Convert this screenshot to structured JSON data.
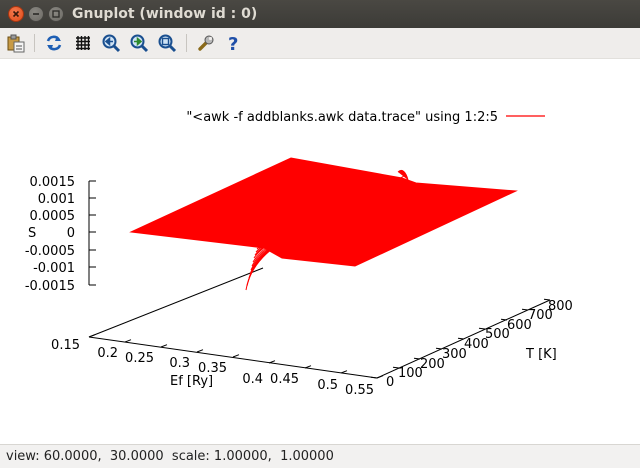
{
  "window": {
    "title": "Gnuplot (window id : 0)"
  },
  "toolbar": {
    "icons": [
      "copy-clipboard-icon",
      "replot-icon",
      "grid-icon",
      "zoom-previous-icon",
      "zoom-next-icon",
      "autoscale-icon",
      "settings-icon",
      "help-icon"
    ]
  },
  "plot": {
    "legend": "\"<awk -f addblanks.awk data.trace\" using 1:2:5",
    "legend_color": "#ff0000",
    "z_label": "S",
    "x_label": "Ef [Ry]",
    "y_label": "T [K]"
  },
  "chart_data": {
    "type": "surface",
    "view": [
      60,
      30
    ],
    "x": {
      "label": "Ef [Ry]",
      "ticks": [
        "0.15",
        "0.2",
        "0.25",
        "0.3",
        "0.35",
        "0.4",
        "0.45",
        "0.5",
        "0.55"
      ],
      "range": [
        0.15,
        0.55
      ]
    },
    "y": {
      "label": "T [K]",
      "ticks": [
        "0",
        "100",
        "200",
        "300",
        "400",
        "500",
        "600",
        "700",
        "800"
      ],
      "range": [
        0,
        800
      ]
    },
    "z": {
      "label": "S",
      "ticks": [
        "0.0015",
        "0.001",
        "0.0005",
        "0",
        "-0.0005",
        "-0.001",
        "-0.0015"
      ],
      "range": [
        -0.0015,
        0.0015
      ]
    },
    "series": [
      {
        "name": "\"<awk -f addblanks.awk data.trace\" using 1:2:5",
        "color": "#ff0000"
      }
    ]
  },
  "status": {
    "text": "view: 60.0000,  30.0000  scale: 1.00000,  1.00000"
  }
}
